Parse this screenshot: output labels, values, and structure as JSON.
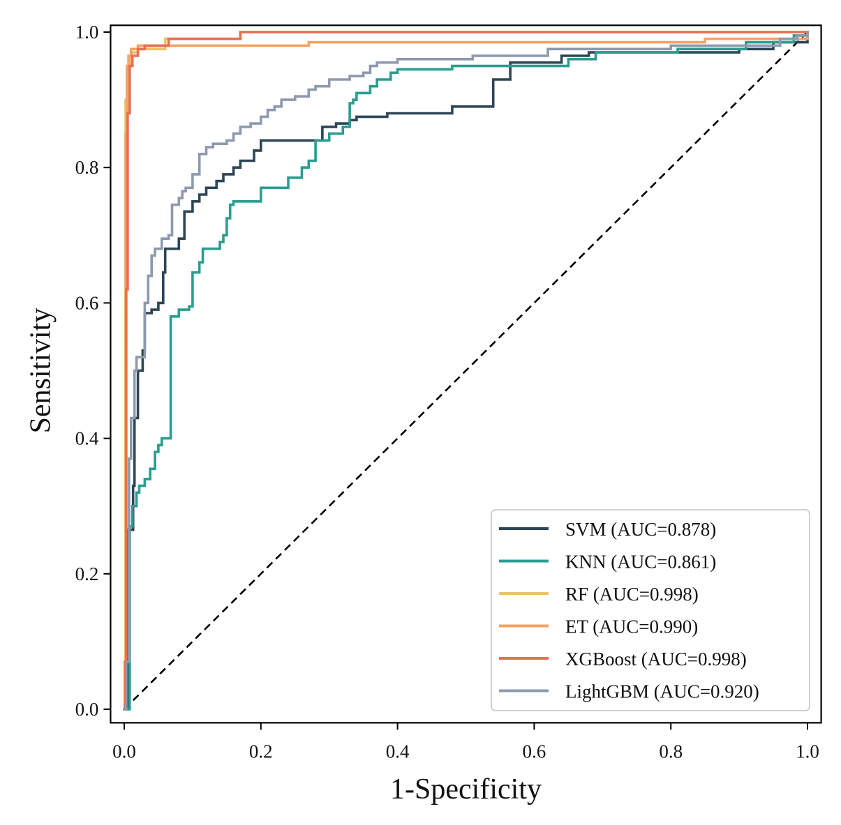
{
  "chart_data": {
    "type": "line",
    "title": "",
    "xlabel": "1-Specificity",
    "ylabel": "Sensitivity",
    "xlim": [
      -0.02,
      1.02
    ],
    "ylim": [
      -0.02,
      1.01
    ],
    "xticks": [
      0.0,
      0.2,
      0.4,
      0.6,
      0.8,
      1.0
    ],
    "yticks": [
      0.0,
      0.2,
      0.4,
      0.6,
      0.8,
      1.0
    ],
    "xtick_labels": [
      "0.0",
      "0.2",
      "0.4",
      "0.6",
      "0.8",
      "1.0"
    ],
    "ytick_labels": [
      "0.0",
      "0.2",
      "0.4",
      "0.6",
      "0.8",
      "1.0"
    ],
    "grid": false,
    "legend_position": "lower-right",
    "reference_line": {
      "name": "chance",
      "style": "dashed",
      "color": "#000000",
      "x": [
        0,
        1
      ],
      "y": [
        0,
        1
      ]
    },
    "series": [
      {
        "name": "SVM",
        "label": "SVM (AUC=0.878)",
        "auc": 0.878,
        "color": "#2c4656",
        "step": true,
        "x": [
          0,
          0.005,
          0.013,
          0.015,
          0.02,
          0.027,
          0.03,
          0.04,
          0.05,
          0.057,
          0.06,
          0.08,
          0.088,
          0.1,
          0.11,
          0.12,
          0.135,
          0.145,
          0.16,
          0.17,
          0.19,
          0.2,
          0.22,
          0.29,
          0.31,
          0.33,
          0.34,
          0.385,
          0.48,
          0.54,
          0.565,
          0.64,
          0.68,
          0.9,
          0.95,
          1.0
        ],
        "y": [
          0,
          0.265,
          0.33,
          0.43,
          0.5,
          0.53,
          0.585,
          0.59,
          0.6,
          0.645,
          0.68,
          0.695,
          0.735,
          0.75,
          0.76,
          0.77,
          0.78,
          0.79,
          0.8,
          0.81,
          0.825,
          0.84,
          0.84,
          0.86,
          0.865,
          0.87,
          0.875,
          0.88,
          0.89,
          0.93,
          0.955,
          0.965,
          0.97,
          0.975,
          0.985,
          1.0
        ]
      },
      {
        "name": "KNN",
        "label": "KNN (AUC=0.861)",
        "auc": 0.861,
        "color": "#2a9d8f",
        "step": true,
        "x": [
          0,
          0.008,
          0.012,
          0.018,
          0.022,
          0.03,
          0.038,
          0.045,
          0.05,
          0.055,
          0.068,
          0.07,
          0.08,
          0.095,
          0.1,
          0.11,
          0.115,
          0.12,
          0.14,
          0.145,
          0.15,
          0.155,
          0.16,
          0.2,
          0.23,
          0.24,
          0.25,
          0.26,
          0.27,
          0.28,
          0.3,
          0.32,
          0.33,
          0.335,
          0.34,
          0.36,
          0.37,
          0.39,
          0.4,
          0.42,
          0.48,
          0.57,
          0.6,
          0.65,
          0.69,
          0.81,
          0.87,
          0.91,
          0.95,
          0.98,
          1.0
        ],
        "y": [
          0,
          0.27,
          0.3,
          0.32,
          0.33,
          0.34,
          0.355,
          0.38,
          0.39,
          0.4,
          0.58,
          0.58,
          0.59,
          0.595,
          0.645,
          0.66,
          0.68,
          0.68,
          0.69,
          0.7,
          0.725,
          0.745,
          0.75,
          0.77,
          0.77,
          0.785,
          0.785,
          0.8,
          0.81,
          0.84,
          0.85,
          0.86,
          0.895,
          0.9,
          0.91,
          0.92,
          0.93,
          0.94,
          0.945,
          0.945,
          0.95,
          0.95,
          0.95,
          0.96,
          0.97,
          0.975,
          0.975,
          0.985,
          0.985,
          0.995,
          1.0
        ]
      },
      {
        "name": "RF",
        "label": "RF (AUC=0.998)",
        "auc": 0.998,
        "color": "#e9c46a",
        "step": true,
        "x": [
          0,
          0.002,
          0.004,
          0.006,
          0.01,
          0.02,
          0.06,
          0.17,
          1.0
        ],
        "y": [
          0,
          0.9,
          0.95,
          0.965,
          0.97,
          0.975,
          0.99,
          1.0,
          1.0
        ]
      },
      {
        "name": "ET",
        "label": "ET (AUC=0.990)",
        "auc": 0.99,
        "color": "#f4a261",
        "step": true,
        "x": [
          0,
          0.002,
          0.004,
          0.008,
          0.01,
          0.02,
          0.27,
          0.85,
          1.0
        ],
        "y": [
          0,
          0.85,
          0.95,
          0.965,
          0.975,
          0.98,
          0.985,
          0.99,
          1.0
        ]
      },
      {
        "name": "XGBoost",
        "label": "XGBoost (AUC=0.998)",
        "auc": 0.998,
        "color": "#e76f51",
        "step": true,
        "x": [
          0,
          0.001,
          0.003,
          0.005,
          0.008,
          0.012,
          0.02,
          0.03,
          0.065,
          0.17,
          1.0
        ],
        "y": [
          0,
          0.07,
          0.62,
          0.88,
          0.95,
          0.965,
          0.975,
          0.98,
          0.99,
          1.0,
          1.0
        ]
      },
      {
        "name": "LightGBM",
        "label": "LightGBM (AUC=0.920)",
        "auc": 0.92,
        "color": "#8d99ae",
        "step": true,
        "x": [
          0,
          0.003,
          0.007,
          0.01,
          0.015,
          0.018,
          0.025,
          0.03,
          0.035,
          0.04,
          0.045,
          0.055,
          0.065,
          0.07,
          0.08,
          0.085,
          0.09,
          0.1,
          0.11,
          0.12,
          0.13,
          0.15,
          0.16,
          0.17,
          0.185,
          0.2,
          0.21,
          0.22,
          0.23,
          0.25,
          0.27,
          0.28,
          0.3,
          0.33,
          0.35,
          0.36,
          0.37,
          0.4,
          0.48,
          0.51,
          0.62,
          0.8,
          0.96,
          0.985,
          1.0
        ],
        "y": [
          0,
          0.07,
          0.37,
          0.43,
          0.5,
          0.52,
          0.52,
          0.6,
          0.64,
          0.67,
          0.68,
          0.695,
          0.7,
          0.745,
          0.755,
          0.765,
          0.77,
          0.79,
          0.82,
          0.83,
          0.835,
          0.84,
          0.85,
          0.86,
          0.865,
          0.875,
          0.885,
          0.89,
          0.9,
          0.905,
          0.915,
          0.92,
          0.93,
          0.935,
          0.94,
          0.95,
          0.955,
          0.96,
          0.96,
          0.965,
          0.975,
          0.98,
          0.99,
          0.995,
          1.0
        ]
      }
    ]
  }
}
